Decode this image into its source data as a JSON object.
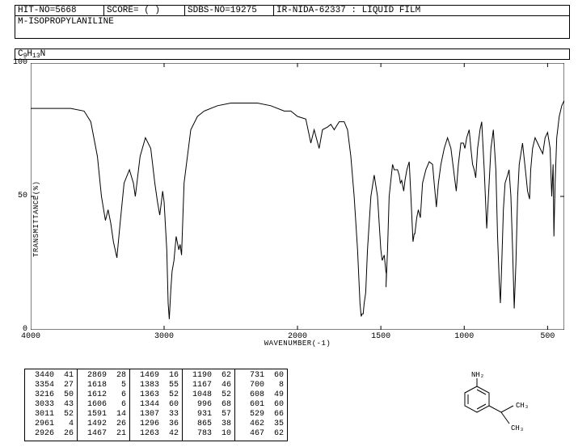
{
  "header": {
    "hit_no": "HIT-NO=5668",
    "score": "SCORE=  ( )",
    "sdbs_no": "SDBS-NO=19275",
    "ir_info": "IR-NIDA-62337 : LIQUID FILM"
  },
  "compound_name": "M-ISOPROPYLANILINE",
  "formula_parts": [
    "C",
    "9",
    "H",
    "13",
    "N"
  ],
  "chart": {
    "type": "line",
    "xlabel": "WAVENUMBER(-1)",
    "ylabel": "TRANSMITTANCE(%)",
    "xlim": [
      4000,
      400
    ],
    "ylim": [
      0,
      100
    ],
    "xticks": [
      4000,
      3000,
      2000,
      1500,
      1000,
      500
    ],
    "yticks": [
      0,
      50,
      100
    ],
    "line_color": "#000000",
    "background_color": "#ffffff",
    "line_width": 1,
    "spectrum": [
      [
        4000,
        83
      ],
      [
        3900,
        83
      ],
      [
        3800,
        83
      ],
      [
        3700,
        83
      ],
      [
        3600,
        82
      ],
      [
        3550,
        78
      ],
      [
        3500,
        65
      ],
      [
        3470,
        50
      ],
      [
        3440,
        41
      ],
      [
        3420,
        45
      ],
      [
        3400,
        40
      ],
      [
        3380,
        33
      ],
      [
        3354,
        27
      ],
      [
        3330,
        40
      ],
      [
        3300,
        55
      ],
      [
        3260,
        60
      ],
      [
        3230,
        55
      ],
      [
        3216,
        50
      ],
      [
        3180,
        65
      ],
      [
        3140,
        72
      ],
      [
        3100,
        68
      ],
      [
        3070,
        55
      ],
      [
        3050,
        48
      ],
      [
        3033,
        43
      ],
      [
        3020,
        48
      ],
      [
        3011,
        52
      ],
      [
        3000,
        48
      ],
      [
        2980,
        30
      ],
      [
        2970,
        10
      ],
      [
        2961,
        4
      ],
      [
        2950,
        15
      ],
      [
        2940,
        22
      ],
      [
        2926,
        26
      ],
      [
        2910,
        35
      ],
      [
        2890,
        30
      ],
      [
        2880,
        32
      ],
      [
        2869,
        28
      ],
      [
        2850,
        55
      ],
      [
        2800,
        75
      ],
      [
        2750,
        80
      ],
      [
        2700,
        82
      ],
      [
        2600,
        84
      ],
      [
        2500,
        85
      ],
      [
        2400,
        85
      ],
      [
        2300,
        85
      ],
      [
        2200,
        84
      ],
      [
        2100,
        82
      ],
      [
        2050,
        82
      ],
      [
        2000,
        80
      ],
      [
        1950,
        79
      ],
      [
        1920,
        70
      ],
      [
        1900,
        75
      ],
      [
        1870,
        68
      ],
      [
        1850,
        75
      ],
      [
        1820,
        76
      ],
      [
        1800,
        77
      ],
      [
        1780,
        75
      ],
      [
        1750,
        78
      ],
      [
        1720,
        78
      ],
      [
        1700,
        75
      ],
      [
        1680,
        65
      ],
      [
        1660,
        50
      ],
      [
        1640,
        30
      ],
      [
        1625,
        10
      ],
      [
        1618,
        5
      ],
      [
        1612,
        6
      ],
      [
        1606,
        6
      ],
      [
        1600,
        10
      ],
      [
        1595,
        12
      ],
      [
        1591,
        14
      ],
      [
        1580,
        30
      ],
      [
        1560,
        50
      ],
      [
        1540,
        58
      ],
      [
        1520,
        50
      ],
      [
        1500,
        30
      ],
      [
        1492,
        26
      ],
      [
        1480,
        28
      ],
      [
        1470,
        22
      ],
      [
        1467,
        21
      ],
      [
        1469,
        16
      ],
      [
        1460,
        30
      ],
      [
        1450,
        50
      ],
      [
        1430,
        62
      ],
      [
        1420,
        60
      ],
      [
        1400,
        60
      ],
      [
        1390,
        58
      ],
      [
        1383,
        55
      ],
      [
        1375,
        56
      ],
      [
        1363,
        52
      ],
      [
        1355,
        56
      ],
      [
        1344,
        60
      ],
      [
        1330,
        63
      ],
      [
        1320,
        50
      ],
      [
        1307,
        33
      ],
      [
        1300,
        36
      ],
      [
        1296,
        36
      ],
      [
        1285,
        42
      ],
      [
        1275,
        45
      ],
      [
        1263,
        42
      ],
      [
        1250,
        55
      ],
      [
        1230,
        60
      ],
      [
        1210,
        63
      ],
      [
        1190,
        62
      ],
      [
        1180,
        55
      ],
      [
        1167,
        46
      ],
      [
        1155,
        55
      ],
      [
        1140,
        62
      ],
      [
        1120,
        68
      ],
      [
        1100,
        72
      ],
      [
        1080,
        68
      ],
      [
        1060,
        58
      ],
      [
        1048,
        52
      ],
      [
        1035,
        62
      ],
      [
        1020,
        70
      ],
      [
        1005,
        70
      ],
      [
        996,
        68
      ],
      [
        985,
        72
      ],
      [
        970,
        75
      ],
      [
        960,
        68
      ],
      [
        950,
        62
      ],
      [
        940,
        60
      ],
      [
        931,
        57
      ],
      [
        920,
        68
      ],
      [
        905,
        75
      ],
      [
        895,
        78
      ],
      [
        880,
        60
      ],
      [
        870,
        45
      ],
      [
        865,
        38
      ],
      [
        855,
        50
      ],
      [
        840,
        68
      ],
      [
        825,
        75
      ],
      [
        810,
        60
      ],
      [
        800,
        35
      ],
      [
        790,
        18
      ],
      [
        783,
        10
      ],
      [
        775,
        25
      ],
      [
        765,
        45
      ],
      [
        755,
        55
      ],
      [
        740,
        58
      ],
      [
        731,
        60
      ],
      [
        720,
        50
      ],
      [
        710,
        30
      ],
      [
        700,
        8
      ],
      [
        690,
        25
      ],
      [
        680,
        50
      ],
      [
        670,
        62
      ],
      [
        650,
        70
      ],
      [
        630,
        58
      ],
      [
        620,
        52
      ],
      [
        608,
        49
      ],
      [
        601,
        60
      ],
      [
        590,
        68
      ],
      [
        575,
        72
      ],
      [
        560,
        70
      ],
      [
        545,
        68
      ],
      [
        529,
        66
      ],
      [
        515,
        72
      ],
      [
        500,
        74
      ],
      [
        485,
        68
      ],
      [
        475,
        50
      ],
      [
        467,
        62
      ],
      [
        462,
        35
      ],
      [
        455,
        55
      ],
      [
        445,
        72
      ],
      [
        430,
        80
      ],
      [
        415,
        84
      ],
      [
        400,
        86
      ]
    ]
  },
  "peak_columns": [
    [
      [
        3440,
        41
      ],
      [
        3354,
        27
      ],
      [
        3216,
        50
      ],
      [
        3033,
        43
      ],
      [
        3011,
        52
      ],
      [
        2961,
        4
      ],
      [
        2926,
        26
      ]
    ],
    [
      [
        2869,
        28
      ],
      [
        1618,
        5
      ],
      [
        1612,
        6
      ],
      [
        1606,
        6
      ],
      [
        1591,
        14
      ],
      [
        1492,
        26
      ],
      [
        1467,
        21
      ]
    ],
    [
      [
        1469,
        16
      ],
      [
        1383,
        55
      ],
      [
        1363,
        52
      ],
      [
        1344,
        60
      ],
      [
        1307,
        33
      ],
      [
        1296,
        36
      ],
      [
        1263,
        42
      ]
    ],
    [
      [
        1190,
        62
      ],
      [
        1167,
        46
      ],
      [
        1048,
        52
      ],
      [
        996,
        68
      ],
      [
        931,
        57
      ],
      [
        865,
        38
      ],
      [
        783,
        10
      ]
    ],
    [
      [
        731,
        60
      ],
      [
        700,
        8
      ],
      [
        608,
        49
      ],
      [
        601,
        60
      ],
      [
        529,
        66
      ],
      [
        462,
        35
      ],
      [
        467,
        62
      ]
    ]
  ],
  "structure": {
    "label_nh2": "NH₂",
    "label_ch3_1": "CH₃",
    "label_ch3_2": "CH₃"
  }
}
